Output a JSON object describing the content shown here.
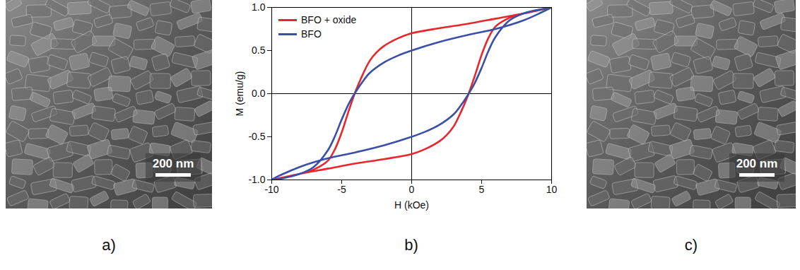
{
  "panels": [
    {
      "label": "a)",
      "scale_bar": "200 nm"
    },
    {
      "label": "b)"
    },
    {
      "label": "c)",
      "scale_bar": "200 nm"
    }
  ],
  "chart_data": {
    "type": "line",
    "x_label": "H (kOe)",
    "y_label": "M (emu/g)",
    "xlim": [
      -10,
      10
    ],
    "xticks": [
      -10,
      -5,
      0,
      5,
      10
    ],
    "ylim": [
      -1,
      1
    ],
    "yticks": [
      {
        "value": -1,
        "label": "-1.0"
      },
      {
        "value": -0.5,
        "label": "-0.5"
      },
      {
        "value": 0,
        "label": "0.0"
      },
      {
        "value": 0.5,
        "label": "0.5"
      },
      {
        "value": 1,
        "label": "1.0"
      }
    ],
    "grid": false,
    "legend": "top-left",
    "series": [
      {
        "name": "BFO + oxide",
        "color": "#e8262b",
        "x": [
          10,
          8,
          6,
          4,
          2,
          0,
          -1,
          -2,
          -2.5,
          -3,
          -3.5,
          -4,
          -4.5,
          -5,
          -5.5,
          -6,
          -7,
          -8,
          -10,
          -8,
          -6,
          -4,
          -2,
          0,
          1,
          2,
          2.5,
          3,
          3.5,
          4,
          4.5,
          5,
          5.5,
          6,
          7,
          8,
          10
        ],
        "values": [
          1,
          0.93,
          0.87,
          0.81,
          0.76,
          0.7,
          0.64,
          0.55,
          0.48,
          0.38,
          0.22,
          0.03,
          -0.2,
          -0.45,
          -0.65,
          -0.78,
          -0.88,
          -0.93,
          -1,
          -0.93,
          -0.87,
          -0.81,
          -0.76,
          -0.7,
          -0.64,
          -0.55,
          -0.48,
          -0.38,
          -0.22,
          -0.03,
          0.2,
          0.45,
          0.65,
          0.78,
          0.88,
          0.93,
          1
        ]
      },
      {
        "name": "BFO",
        "color": "#3a4fa5",
        "x": [
          10,
          8,
          6,
          4,
          2,
          0,
          -1,
          -2,
          -3,
          -3.5,
          -4,
          -4.5,
          -5,
          -5.5,
          -6,
          -7,
          -8,
          -10,
          -8,
          -6,
          -4,
          -2,
          0,
          1,
          2,
          3,
          3.5,
          4,
          4.5,
          5,
          5.5,
          6,
          7,
          8,
          10
        ],
        "values": [
          1,
          0.85,
          0.75,
          0.68,
          0.6,
          0.5,
          0.44,
          0.36,
          0.24,
          0.14,
          0.02,
          -0.12,
          -0.3,
          -0.5,
          -0.66,
          -0.85,
          -0.93,
          -1,
          -0.85,
          -0.75,
          -0.68,
          -0.6,
          -0.5,
          -0.44,
          -0.36,
          -0.24,
          -0.14,
          -0.02,
          0.12,
          0.3,
          0.5,
          0.66,
          0.85,
          0.93,
          1
        ]
      }
    ]
  }
}
